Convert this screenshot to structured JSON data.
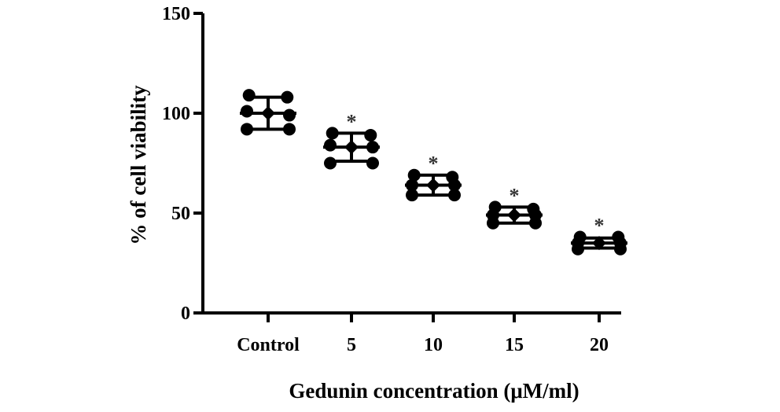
{
  "chart_data": {
    "type": "scatter",
    "title": "",
    "xlabel": "Gedunin concentration (μM/ml)",
    "ylabel": "% of cell viability",
    "ylim": [
      0,
      150
    ],
    "yticks": [
      "0",
      "50",
      "100",
      "150"
    ],
    "categories": [
      "Control",
      "5",
      "10",
      "15",
      "20"
    ],
    "mean": [
      100,
      83,
      64,
      49,
      35
    ],
    "sd": [
      8,
      7,
      5,
      4,
      2.5
    ],
    "points": [
      [
        109,
        108,
        101,
        99,
        92,
        92
      ],
      [
        90,
        89,
        84,
        83,
        75,
        75
      ],
      [
        69,
        68,
        64,
        64,
        59,
        59
      ],
      [
        53,
        52,
        49,
        49,
        45,
        45
      ],
      [
        38,
        38,
        35,
        35,
        32,
        32
      ]
    ],
    "significance": [
      "",
      "*",
      "*",
      "*",
      "*"
    ],
    "colors": {
      "points": "#000000",
      "axis": "#000000",
      "star": "#333333"
    },
    "grid": false,
    "legend": "none"
  }
}
